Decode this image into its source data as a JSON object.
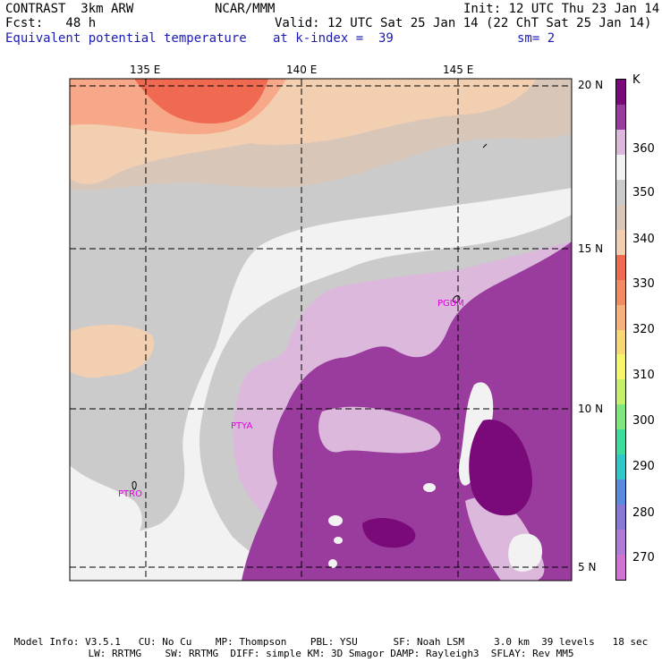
{
  "header": {
    "model": "CONTRAST  3km ARW",
    "org": "NCAR/MMM",
    "init": "Init: 12 UTC Thu 23 Jan 14",
    "fcst": "Fcst:   48 h",
    "valid": "Valid: 12 UTC Sat 25 Jan 14 (22 ChT Sat 25 Jan 14)",
    "field": "Equivalent potential temperature",
    "level": "at k-index =  39",
    "smooth": "sm= 2"
  },
  "map": {
    "lon_labels": [
      "135 E",
      "140 E",
      "145 E"
    ],
    "lat_labels": [
      "20 N",
      "15 N",
      "10 N",
      "5 N"
    ],
    "stations": [
      "PGUM",
      "PTYA",
      "PTRO"
    ]
  },
  "colorbar": {
    "unit": "K",
    "labels": [
      "360",
      "350",
      "340",
      "330",
      "320",
      "310",
      "300",
      "290",
      "280",
      "270"
    ],
    "colors": [
      "#7a0a7a",
      "#9a3c9e",
      "#dcb8dc",
      "#f2f2f2",
      "#cbcbcb",
      "#d8c6b8",
      "#f3cfb2",
      "#f06a52",
      "#f28c60",
      "#f7b27a",
      "#f8d774",
      "#f7f56c",
      "#c5f06a",
      "#7ee87e",
      "#3edc9c",
      "#2ec8c8",
      "#5a8ae0",
      "#8a78d8",
      "#b07ad8",
      "#d272d2"
    ]
  },
  "footer": {
    "line1": "Model Info: V3.5.1   CU: No Cu    MP: Thompson    PBL: YSU      SF: Noah LSM     3.0 km  39 levels   18 sec",
    "line2": "LW: RRTMG    SW: RRTMG  DIFF: simple KM: 3D Smagor DAMP: Rayleigh3  SFLAY: Rev MM5"
  }
}
